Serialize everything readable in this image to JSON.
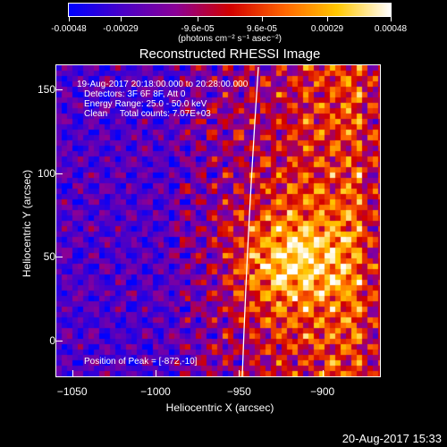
{
  "colorbar": {
    "ticks": [
      "-0.00048",
      "-0.00029",
      "-9.6e-05",
      "9.6e-05",
      "0.00029",
      "0.00048"
    ],
    "units_label": "(photons cm⁻² s⁻¹ asec⁻²)",
    "colors": [
      "#0000ff",
      "#4b00c8",
      "#8c0096",
      "#d20000",
      "#ff6400",
      "#ffc800",
      "#ffffff"
    ]
  },
  "title": "Reconstructed RHESSI Image",
  "info": {
    "time_range": "19-Aug-2017 20:18:00.000 to 20:28:00.000",
    "detectors": "Detectors: 3F 6F 8F, Att 0",
    "energy": "Energy Range: 25.0 - 50.0 keV",
    "clean": "Clean     Total counts: 7.07E+03",
    "peak": "Position of Peak = [-872,-10]"
  },
  "axes": {
    "xlabel": "Heliocentric X (arcsec)",
    "ylabel": "Heliocentric Y (arcsec)",
    "x_ticks": [
      "−1050",
      "−1000",
      "−950",
      "−900"
    ],
    "y_ticks": [
      "0",
      "50",
      "100",
      "150"
    ],
    "x_range": [
      -1060,
      -865
    ],
    "y_range": [
      -22,
      165
    ]
  },
  "timestamp": "20-Aug-2017 15:33"
}
